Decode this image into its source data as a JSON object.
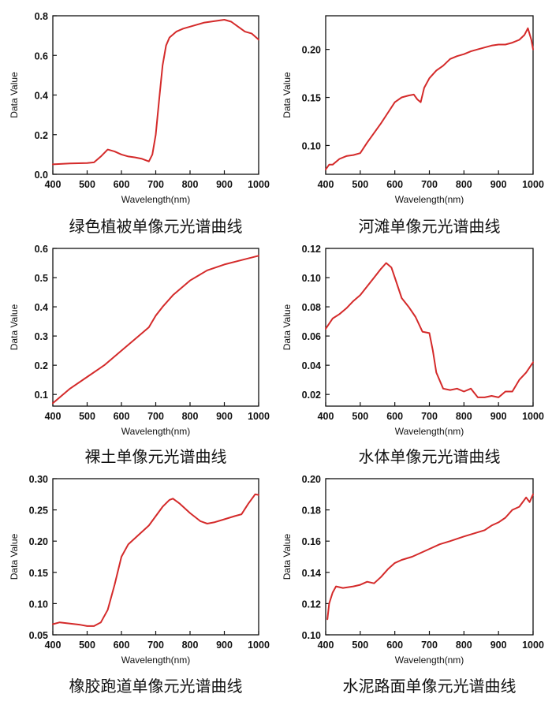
{
  "chart_data": [
    {
      "type": "line",
      "caption": "绿色植被单像元光谱曲线",
      "xlabel": "Wavelength(nm)",
      "ylabel": "Data Value",
      "xlim": [
        400,
        1000
      ],
      "ylim": [
        0.0,
        0.8
      ],
      "xticks": [
        "400",
        "500",
        "600",
        "700",
        "800",
        "900",
        "1000"
      ],
      "yticks": [
        "0.0",
        "0.2",
        "0.4",
        "0.6",
        "0.8"
      ],
      "color": "#d42a2a",
      "series": [
        {
          "x": [
            400,
            450,
            500,
            520,
            540,
            560,
            580,
            600,
            620,
            640,
            660,
            680,
            690,
            700,
            710,
            720,
            730,
            740,
            760,
            780,
            800,
            820,
            840,
            860,
            880,
            900,
            920,
            940,
            960,
            980,
            1000
          ],
          "y": [
            0.05,
            0.055,
            0.057,
            0.06,
            0.09,
            0.125,
            0.115,
            0.1,
            0.09,
            0.085,
            0.078,
            0.065,
            0.1,
            0.2,
            0.38,
            0.55,
            0.65,
            0.69,
            0.72,
            0.735,
            0.745,
            0.755,
            0.765,
            0.77,
            0.775,
            0.78,
            0.77,
            0.745,
            0.72,
            0.71,
            0.68
          ]
        }
      ]
    },
    {
      "type": "line",
      "caption": "河滩单像元光谱曲线",
      "xlabel": "Wavelength(nm)",
      "ylabel": "Data Value",
      "xlim": [
        400,
        1000
      ],
      "ylim": [
        0.07,
        0.235
      ],
      "xticks": [
        "400",
        "500",
        "600",
        "700",
        "800",
        "900",
        "1000"
      ],
      "yticks": [
        "0.10",
        "0.15",
        "0.20"
      ],
      "ytick_values": [
        0.1,
        0.15,
        0.2
      ],
      "color": "#d42a2a",
      "series": [
        {
          "x": [
            400,
            410,
            420,
            440,
            460,
            480,
            500,
            520,
            540,
            560,
            580,
            600,
            620,
            640,
            655,
            665,
            675,
            685,
            700,
            720,
            740,
            760,
            780,
            800,
            820,
            840,
            860,
            880,
            900,
            920,
            940,
            960,
            975,
            985,
            995,
            1000
          ],
          "y": [
            0.075,
            0.08,
            0.08,
            0.086,
            0.089,
            0.09,
            0.092,
            0.103,
            0.113,
            0.123,
            0.134,
            0.145,
            0.15,
            0.152,
            0.153,
            0.148,
            0.145,
            0.16,
            0.17,
            0.178,
            0.183,
            0.19,
            0.193,
            0.195,
            0.198,
            0.2,
            0.202,
            0.204,
            0.205,
            0.205,
            0.207,
            0.21,
            0.215,
            0.222,
            0.21,
            0.2
          ]
        }
      ]
    },
    {
      "type": "line",
      "caption": "裸土单像元光谱曲线",
      "xlabel": "Wavelength(nm)",
      "ylabel": "Data Value",
      "xlim": [
        400,
        1000
      ],
      "ylim": [
        0.06,
        0.6
      ],
      "xticks": [
        "400",
        "500",
        "600",
        "700",
        "800",
        "900",
        "1000"
      ],
      "yticks": [
        "0.1",
        "0.2",
        "0.3",
        "0.4",
        "0.5",
        "0.6"
      ],
      "ytick_values": [
        0.1,
        0.2,
        0.3,
        0.4,
        0.5,
        0.6
      ],
      "color": "#d42a2a",
      "series": [
        {
          "x": [
            400,
            450,
            500,
            550,
            600,
            650,
            680,
            700,
            720,
            750,
            800,
            850,
            900,
            950,
            1000
          ],
          "y": [
            0.07,
            0.12,
            0.16,
            0.2,
            0.25,
            0.3,
            0.33,
            0.37,
            0.4,
            0.44,
            0.49,
            0.525,
            0.545,
            0.56,
            0.575
          ]
        }
      ]
    },
    {
      "type": "line",
      "caption": "水体单像元光谱曲线",
      "xlabel": "Wavelength(nm)",
      "ylabel": "Data Value",
      "xlim": [
        400,
        1000
      ],
      "ylim": [
        0.012,
        0.12
      ],
      "xticks": [
        "400",
        "500",
        "600",
        "700",
        "800",
        "900",
        "1000"
      ],
      "yticks": [
        "0.02",
        "0.04",
        "0.06",
        "0.08",
        "0.10",
        "0.12"
      ],
      "ytick_values": [
        0.02,
        0.04,
        0.06,
        0.08,
        0.1,
        0.12
      ],
      "color": "#d42a2a",
      "series": [
        {
          "x": [
            400,
            420,
            440,
            460,
            480,
            500,
            520,
            540,
            560,
            575,
            590,
            600,
            620,
            640,
            660,
            680,
            700,
            710,
            720,
            740,
            760,
            780,
            800,
            820,
            840,
            860,
            880,
            900,
            920,
            940,
            960,
            980,
            1000
          ],
          "y": [
            0.065,
            0.072,
            0.075,
            0.079,
            0.084,
            0.088,
            0.094,
            0.1,
            0.106,
            0.11,
            0.107,
            0.1,
            0.086,
            0.08,
            0.073,
            0.063,
            0.062,
            0.05,
            0.035,
            0.024,
            0.023,
            0.024,
            0.022,
            0.024,
            0.018,
            0.018,
            0.019,
            0.018,
            0.022,
            0.022,
            0.03,
            0.035,
            0.042
          ]
        }
      ]
    },
    {
      "type": "line",
      "caption": "橡胶跑道单像元光谱曲线",
      "xlabel": "Wavelength(nm)",
      "ylabel": "Data Value",
      "xlim": [
        400,
        1000
      ],
      "ylim": [
        0.05,
        0.3
      ],
      "xticks": [
        "400",
        "500",
        "600",
        "700",
        "800",
        "900",
        "1000"
      ],
      "yticks": [
        "0.05",
        "0.10",
        "0.15",
        "0.20",
        "0.25",
        "0.30"
      ],
      "ytick_values": [
        0.05,
        0.1,
        0.15,
        0.2,
        0.25,
        0.3
      ],
      "color": "#d42a2a",
      "series": [
        {
          "x": [
            400,
            420,
            450,
            480,
            500,
            520,
            540,
            560,
            580,
            600,
            620,
            650,
            680,
            700,
            720,
            740,
            750,
            770,
            800,
            830,
            850,
            870,
            900,
            930,
            950,
            970,
            990,
            1000
          ],
          "y": [
            0.067,
            0.07,
            0.068,
            0.066,
            0.064,
            0.064,
            0.07,
            0.09,
            0.13,
            0.175,
            0.195,
            0.21,
            0.225,
            0.24,
            0.255,
            0.266,
            0.268,
            0.26,
            0.245,
            0.232,
            0.228,
            0.23,
            0.235,
            0.24,
            0.243,
            0.26,
            0.275,
            0.274
          ]
        }
      ]
    },
    {
      "type": "line",
      "caption": "水泥路面单像元光谱曲线",
      "xlabel": "Wavelength(nm)",
      "ylabel": "Data Value",
      "xlim": [
        400,
        1000
      ],
      "ylim": [
        0.1,
        0.2
      ],
      "xticks": [
        "400",
        "500",
        "600",
        "700",
        "800",
        "900",
        "1000"
      ],
      "yticks": [
        "0.10",
        "0.12",
        "0.14",
        "0.16",
        "0.18",
        "0.20"
      ],
      "ytick_values": [
        0.1,
        0.12,
        0.14,
        0.16,
        0.18,
        0.2
      ],
      "color": "#d42a2a",
      "series": [
        {
          "x": [
            405,
            410,
            420,
            430,
            450,
            480,
            500,
            520,
            540,
            560,
            580,
            600,
            620,
            650,
            680,
            700,
            730,
            760,
            800,
            830,
            860,
            880,
            900,
            920,
            940,
            960,
            980,
            990,
            1000
          ],
          "y": [
            0.11,
            0.12,
            0.127,
            0.131,
            0.13,
            0.131,
            0.132,
            0.134,
            0.133,
            0.137,
            0.142,
            0.146,
            0.148,
            0.15,
            0.153,
            0.155,
            0.158,
            0.16,
            0.163,
            0.165,
            0.167,
            0.17,
            0.172,
            0.175,
            0.18,
            0.182,
            0.188,
            0.185,
            0.19
          ]
        }
      ]
    }
  ]
}
